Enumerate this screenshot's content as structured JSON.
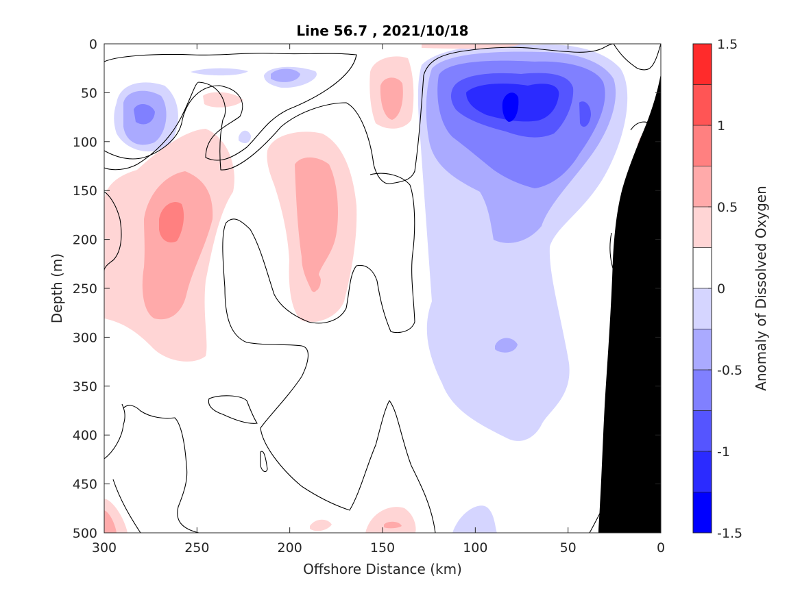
{
  "chart_data": {
    "type": "heatmap",
    "title": "Line 56.7 , 2021/10/18",
    "xlabel": "Offshore Distance (km)",
    "ylabel": "Depth (m)",
    "colorbar_label": "Anomaly of Dissolved Oxygen",
    "xlim": [
      300,
      0
    ],
    "ylim": [
      0,
      500
    ],
    "x_reversed": true,
    "y_reversed": true,
    "x_ticks": [
      "300",
      "250",
      "200",
      "150",
      "100",
      "50",
      "0"
    ],
    "x_tick_values": [
      300,
      250,
      200,
      150,
      100,
      50,
      0
    ],
    "y_ticks": [
      "0",
      "50",
      "100",
      "150",
      "200",
      "250",
      "300",
      "350",
      "400",
      "450",
      "500"
    ],
    "y_tick_values": [
      0,
      50,
      100,
      150,
      200,
      250,
      300,
      350,
      400,
      450,
      500
    ],
    "colorbar_ticks": [
      "1.5",
      "1",
      "0.5",
      "0",
      "-0.5",
      "-1",
      "-1.5"
    ],
    "colorbar_tick_values": [
      1.5,
      1,
      0.5,
      0,
      -0.5,
      -1,
      -1.5
    ],
    "clim": [
      -1.5,
      1.5
    ],
    "levels": [
      -1.5,
      -1.25,
      -1.0,
      -0.75,
      -0.5,
      -0.25,
      0.25,
      0.5,
      0.75,
      1.0,
      1.25,
      1.5
    ],
    "level_colors": [
      "#0000ff",
      "#2b2bff",
      "#5555ff",
      "#8080ff",
      "#aaaaff",
      "#d5d5ff",
      "#ffffff",
      "#ffd5d5",
      "#ffaaaa",
      "#ff8080",
      "#ff5555",
      "#ff2b2b"
    ],
    "features": [
      {
        "name": "oxygen-minimum-core",
        "x_km": 80,
        "depth_m": 70,
        "anomaly": -1.4
      },
      {
        "name": "large-negative-anomaly",
        "x_km": 85,
        "depth_m": 150,
        "anomaly": -0.9
      },
      {
        "name": "negative-tongue",
        "x_km": 90,
        "depth_m": 350,
        "anomaly": -0.4
      },
      {
        "name": "west-positive-lens",
        "x_km": 265,
        "depth_m": 190,
        "anomaly": 0.9
      },
      {
        "name": "mid-positive-lens",
        "x_km": 180,
        "depth_m": 170,
        "anomaly": 0.7
      },
      {
        "name": "near-surface-positive",
        "x_km": 145,
        "depth_m": 60,
        "anomaly": 0.6
      },
      {
        "name": "west-negative-eddy",
        "x_km": 280,
        "depth_m": 70,
        "anomaly": -0.8
      }
    ],
    "bathymetry_mask": "black"
  }
}
